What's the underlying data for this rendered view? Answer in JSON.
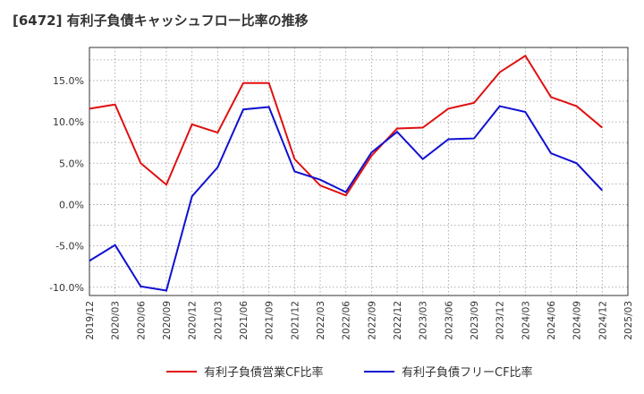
{
  "title": "[6472]  有利子負債キャッシュフロー比率の推移",
  "chart_data": {
    "type": "line",
    "x": [
      "2019/12",
      "2020/03",
      "2020/06",
      "2020/09",
      "2020/12",
      "2021/03",
      "2021/06",
      "2021/09",
      "2021/12",
      "2022/03",
      "2022/06",
      "2022/09",
      "2022/12",
      "2023/03",
      "2023/06",
      "2023/09",
      "2023/12",
      "2024/03",
      "2024/06",
      "2024/09",
      "2024/12",
      "2025/03"
    ],
    "series": [
      {
        "name": "有利子負債営業CF比率",
        "color": "#e01010",
        "values": [
          11.6,
          12.1,
          5.0,
          2.4,
          9.7,
          8.7,
          14.7,
          14.7,
          5.5,
          2.3,
          1.1,
          5.9,
          9.2,
          9.3,
          11.6,
          12.3,
          16.0,
          18.0,
          13.0,
          11.9,
          9.3,
          null
        ]
      },
      {
        "name": "有利子負債フリーCF比率",
        "color": "#1010d0",
        "values": [
          -6.8,
          -4.9,
          -9.9,
          -10.4,
          1.0,
          4.5,
          11.5,
          11.8,
          4.0,
          3.0,
          1.5,
          6.3,
          8.8,
          5.5,
          7.9,
          8.0,
          11.9,
          11.2,
          6.2,
          5.0,
          1.7,
          null
        ]
      }
    ],
    "y_ticks": [
      "-10.0%",
      "-5.0%",
      "0.0%",
      "5.0%",
      "10.0%",
      "15.0%"
    ],
    "ylim": [
      -11,
      19
    ],
    "y_unit": "%",
    "grid": true,
    "legend_position": "bottom"
  }
}
